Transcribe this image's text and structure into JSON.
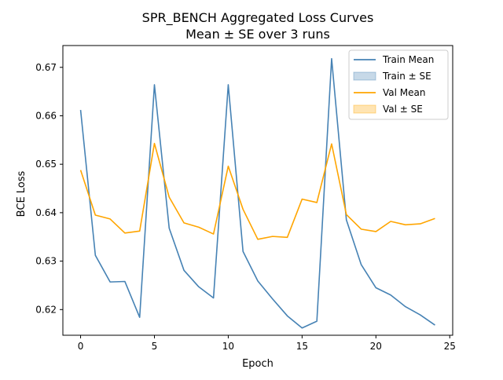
{
  "chart_data": {
    "type": "line",
    "title": "SPR_BENCH Aggregated Loss Curves",
    "subtitle": "Mean ± SE over 3 runs",
    "xlabel": "Epoch",
    "ylabel": "BCE Loss",
    "xlim": [
      -1.2,
      25.2
    ],
    "ylim": [
      0.6147,
      0.6745
    ],
    "xticks": [
      0,
      5,
      10,
      15,
      20,
      25
    ],
    "xtick_labels": [
      "0",
      "5",
      "10",
      "15",
      "20",
      "25"
    ],
    "yticks": [
      0.62,
      0.63,
      0.64,
      0.65,
      0.66,
      0.67
    ],
    "ytick_labels": [
      "0.62",
      "0.63",
      "0.64",
      "0.65",
      "0.66",
      "0.67"
    ],
    "grid": false,
    "legend_position": "top-right",
    "x": [
      0,
      1,
      2,
      3,
      4,
      5,
      6,
      7,
      8,
      9,
      10,
      11,
      12,
      13,
      14,
      15,
      16,
      17,
      18,
      19,
      20,
      21,
      22,
      23,
      24
    ],
    "series": [
      {
        "name": "Train Mean",
        "color": "#4682b4",
        "values": [
          0.6612,
          0.6312,
          0.6257,
          0.6258,
          0.6184,
          0.6664,
          0.6368,
          0.6281,
          0.6247,
          0.6224,
          0.6664,
          0.632,
          0.6259,
          0.6222,
          0.6187,
          0.6162,
          0.6176,
          0.6718,
          0.6385,
          0.6293,
          0.6245,
          0.623,
          0.6206,
          0.6189,
          0.6168
        ]
      },
      {
        "name": "Val Mean",
        "color": "#ffa500",
        "values": [
          0.6488,
          0.6395,
          0.6387,
          0.6358,
          0.6362,
          0.6543,
          0.6432,
          0.6379,
          0.637,
          0.6356,
          0.6496,
          0.6407,
          0.6345,
          0.6351,
          0.6349,
          0.6428,
          0.6421,
          0.6542,
          0.6396,
          0.6366,
          0.6361,
          0.6382,
          0.6375,
          0.6377,
          0.6388
        ]
      }
    ],
    "legend": [
      {
        "label": "Train Mean",
        "kind": "line",
        "color": "#4682b4"
      },
      {
        "label": "Train ± SE",
        "kind": "patch",
        "color": "#4682b4"
      },
      {
        "label": "Val Mean",
        "kind": "line",
        "color": "#ffa500"
      },
      {
        "label": "Val ± SE",
        "kind": "patch",
        "color": "#ffa500"
      }
    ]
  }
}
